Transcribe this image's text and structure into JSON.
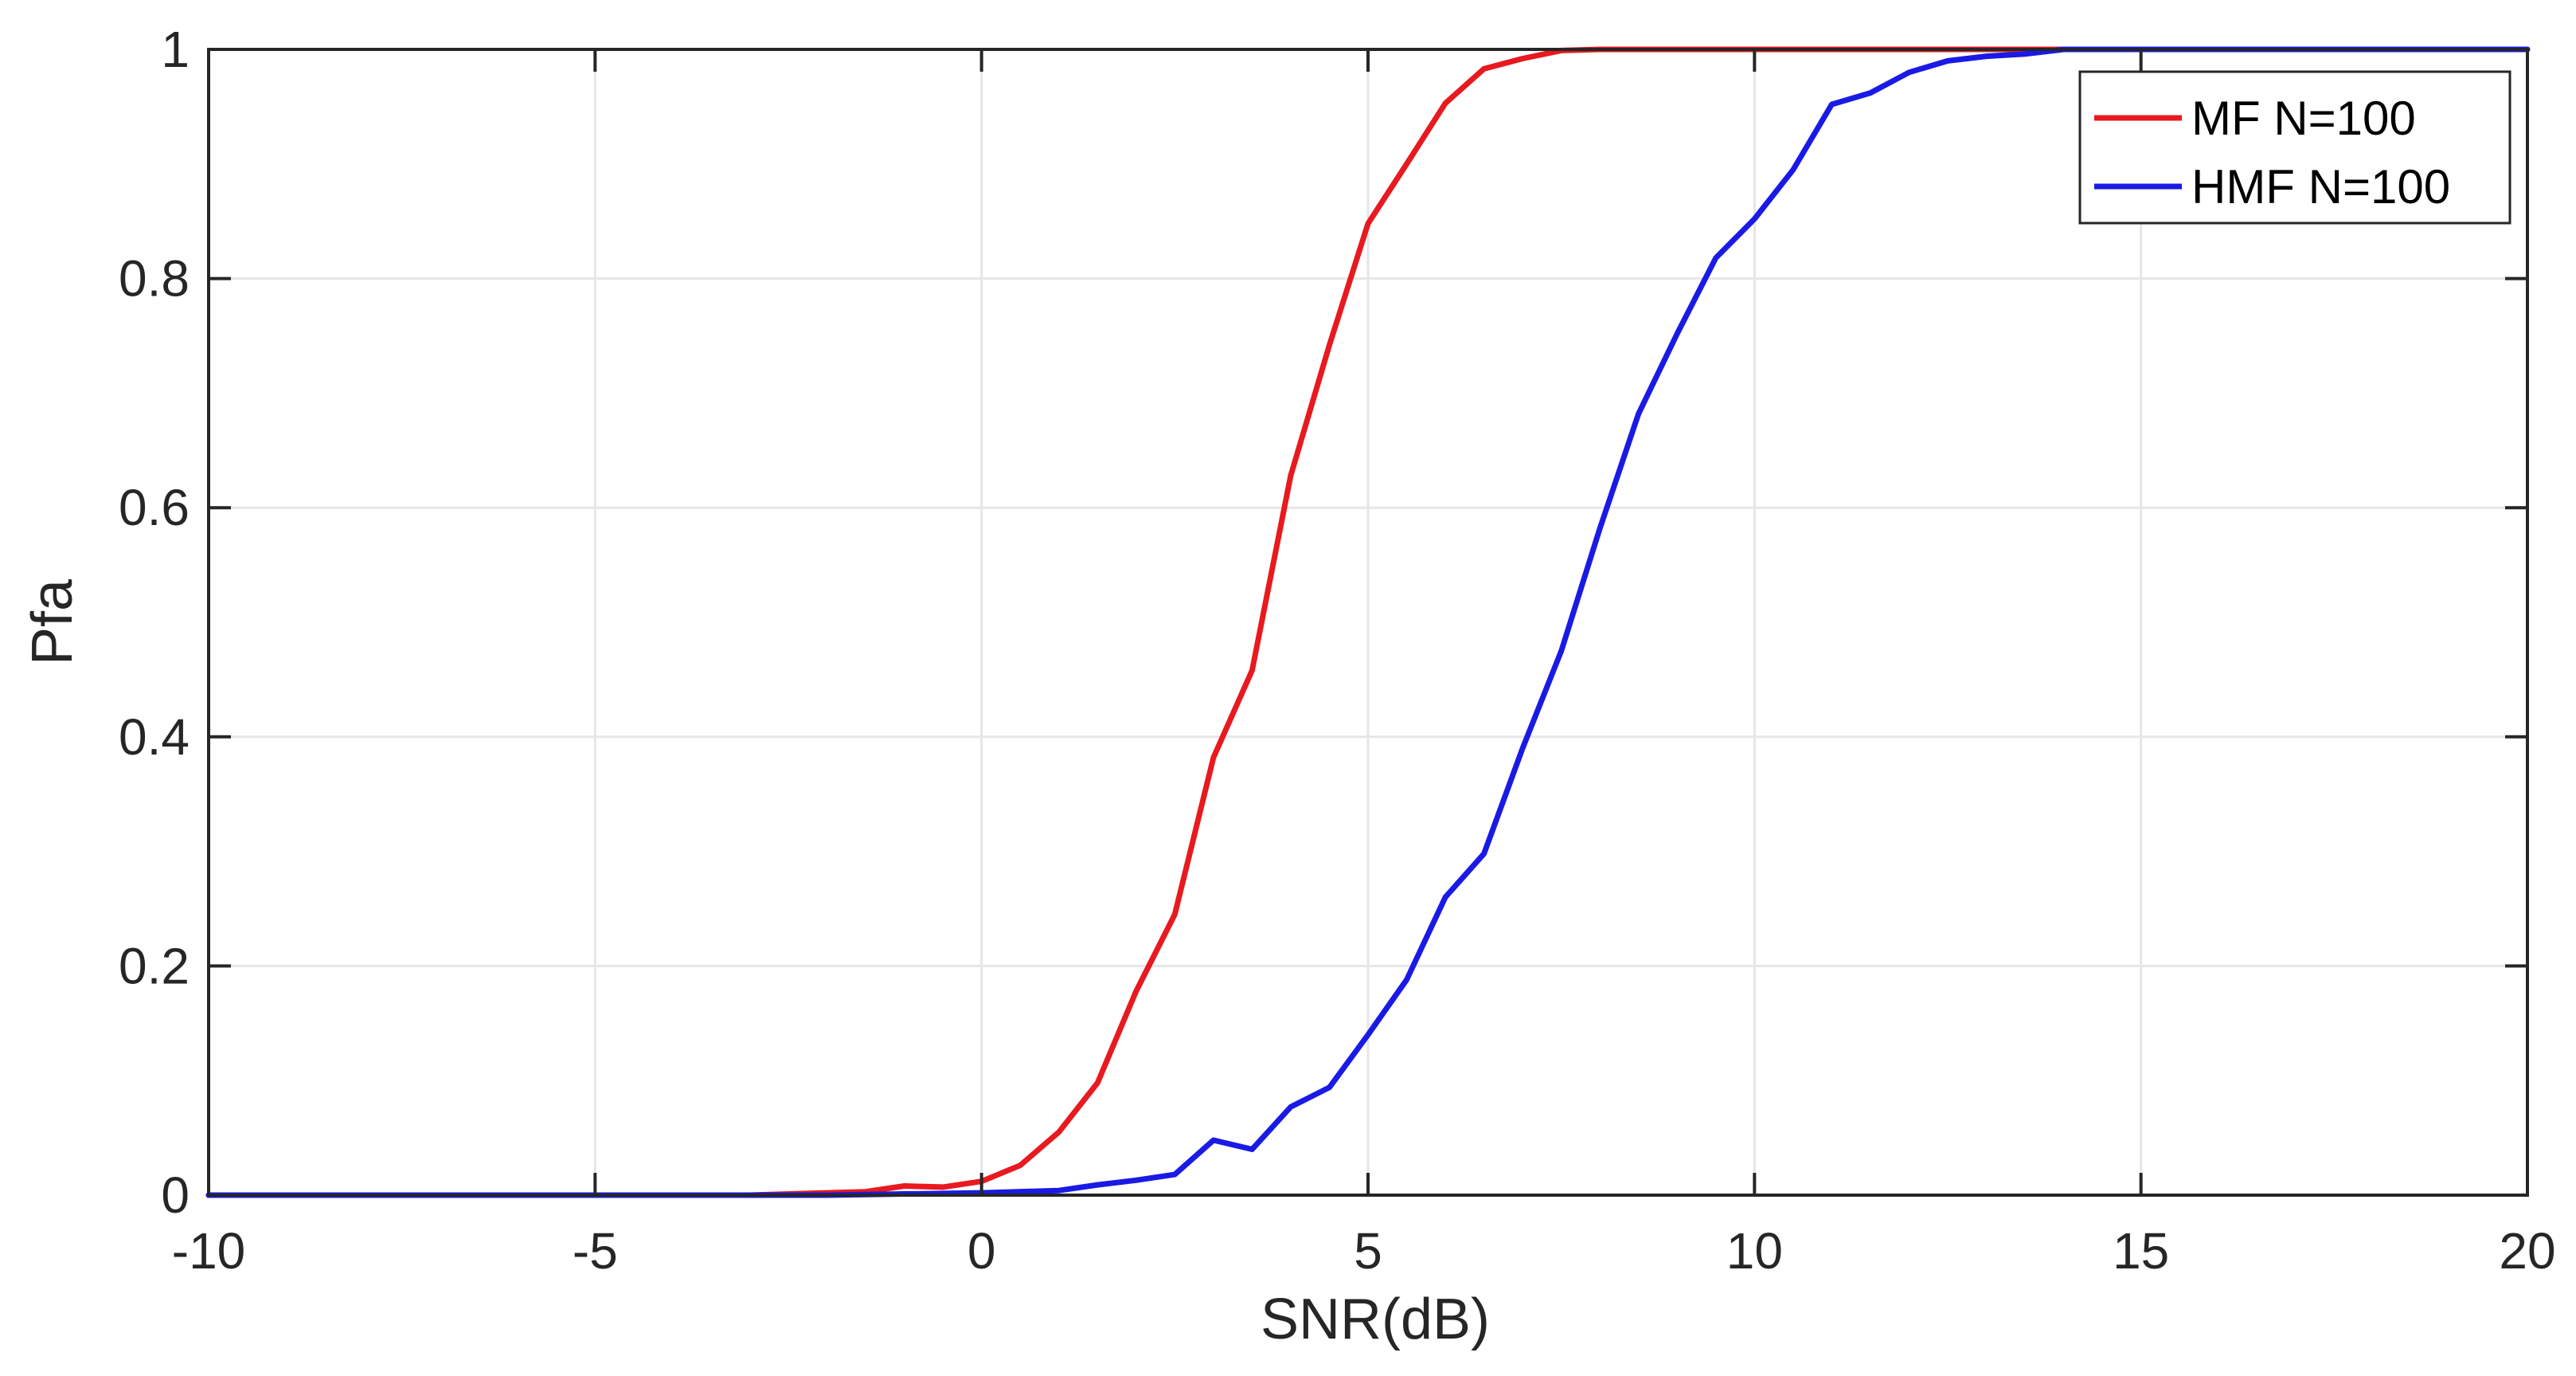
{
  "chart_data": {
    "type": "line",
    "title": "",
    "xlabel": "SNR(dB)",
    "ylabel": "Pfa",
    "xlim": [
      -10,
      20
    ],
    "ylim": [
      0,
      1
    ],
    "xticks": [
      -10,
      -5,
      0,
      5,
      10,
      15,
      20
    ],
    "yticks": [
      0,
      0.2,
      0.4,
      0.6,
      0.8,
      1
    ],
    "xtick_labels": [
      "-10",
      "-5",
      "0",
      "5",
      "10",
      "15",
      "20"
    ],
    "ytick_labels": [
      "0",
      "0.2",
      "0.4",
      "0.6",
      "0.8",
      "1"
    ],
    "grid": true,
    "legend_position": "top-right",
    "series": [
      {
        "name": "MF N=100",
        "color": "#e8191f",
        "x": [
          -10,
          -9,
          -8,
          -7,
          -6,
          -5,
          -4,
          -3,
          -2,
          -1.5,
          -1,
          -0.5,
          0,
          0.5,
          1,
          1.5,
          2,
          2.5,
          3,
          3.5,
          4,
          4.5,
          5,
          5.5,
          6,
          6.5,
          7,
          7.5,
          8,
          9,
          10,
          12,
          15,
          20
        ],
        "y": [
          0,
          0,
          0,
          0,
          0,
          0,
          0,
          0,
          0.002,
          0.003,
          0.008,
          0.007,
          0.012,
          0.026,
          0.055,
          0.098,
          0.178,
          0.245,
          0.382,
          0.458,
          0.628,
          0.742,
          0.848,
          0.9,
          0.953,
          0.983,
          0.992,
          0.999,
          1,
          1,
          1,
          1,
          1,
          1
        ]
      },
      {
        "name": "HMF N=100",
        "color": "#1a1ae6",
        "x": [
          -10,
          -8,
          -6,
          -4,
          -2,
          0,
          1,
          1.5,
          2,
          2.5,
          3,
          3.5,
          4,
          4.5,
          5,
          5.5,
          6,
          6.5,
          7,
          7.5,
          8,
          8.5,
          9,
          9.5,
          10,
          10.5,
          11,
          11.5,
          12,
          12.5,
          13,
          13.5,
          14,
          15,
          20
        ],
        "y": [
          0,
          0,
          0,
          0,
          0,
          0.002,
          0.004,
          0.009,
          0.013,
          0.018,
          0.048,
          0.04,
          0.077,
          0.094,
          0.14,
          0.188,
          0.26,
          0.298,
          0.39,
          0.475,
          0.582,
          0.682,
          0.752,
          0.818,
          0.852,
          0.895,
          0.952,
          0.962,
          0.98,
          0.99,
          0.994,
          0.996,
          1,
          1,
          1
        ]
      }
    ]
  }
}
